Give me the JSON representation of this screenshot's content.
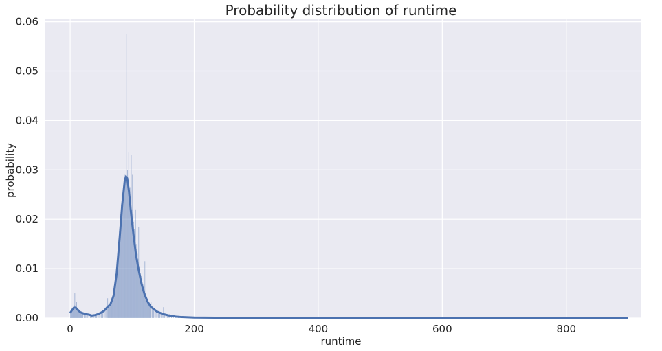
{
  "chart_data": {
    "type": "histogram",
    "title": "Probability distribution of runtime",
    "xlabel": "runtime",
    "ylabel": "probability",
    "xlim": [
      -40,
      920
    ],
    "ylim": [
      0,
      0.0605
    ],
    "xticks": [
      0,
      200,
      400,
      600,
      800
    ],
    "yticks": [
      0.0,
      0.01,
      0.02,
      0.03,
      0.04,
      0.05,
      0.06
    ],
    "ytick_labels": [
      "0.00",
      "0.01",
      "0.02",
      "0.03",
      "0.04",
      "0.05",
      "0.06"
    ],
    "grid": true,
    "background": "#eaeaf2",
    "bar_color": "#4c72b0",
    "line_color": "#4c72b0",
    "histogram_bins": [
      {
        "x": 0,
        "y": 0.001
      },
      {
        "x": 1,
        "y": 0.0013
      },
      {
        "x": 2,
        "y": 0.0014
      },
      {
        "x": 3,
        "y": 0.0018
      },
      {
        "x": 4,
        "y": 0.0016
      },
      {
        "x": 5,
        "y": 0.002
      },
      {
        "x": 6,
        "y": 0.0026
      },
      {
        "x": 7,
        "y": 0.005
      },
      {
        "x": 8,
        "y": 0.0022
      },
      {
        "x": 9,
        "y": 0.002
      },
      {
        "x": 10,
        "y": 0.0032
      },
      {
        "x": 11,
        "y": 0.0018
      },
      {
        "x": 12,
        "y": 0.0016
      },
      {
        "x": 13,
        "y": 0.0014
      },
      {
        "x": 14,
        "y": 0.0012
      },
      {
        "x": 15,
        "y": 0.0012
      },
      {
        "x": 16,
        "y": 0.001
      },
      {
        "x": 17,
        "y": 0.001
      },
      {
        "x": 18,
        "y": 0.001
      },
      {
        "x": 19,
        "y": 0.0009
      },
      {
        "x": 20,
        "y": 0.0009
      },
      {
        "x": 22,
        "y": 0.0008
      },
      {
        "x": 24,
        "y": 0.0008
      },
      {
        "x": 26,
        "y": 0.0007
      },
      {
        "x": 28,
        "y": 0.0007
      },
      {
        "x": 30,
        "y": 0.001
      },
      {
        "x": 32,
        "y": 0.0006
      },
      {
        "x": 34,
        "y": 0.0005
      },
      {
        "x": 36,
        "y": 0.0005
      },
      {
        "x": 38,
        "y": 0.0005
      },
      {
        "x": 40,
        "y": 0.0006
      },
      {
        "x": 42,
        "y": 0.0006
      },
      {
        "x": 44,
        "y": 0.0007
      },
      {
        "x": 46,
        "y": 0.0008
      },
      {
        "x": 48,
        "y": 0.0009
      },
      {
        "x": 50,
        "y": 0.001
      },
      {
        "x": 52,
        "y": 0.0012
      },
      {
        "x": 54,
        "y": 0.0014
      },
      {
        "x": 56,
        "y": 0.0016
      },
      {
        "x": 58,
        "y": 0.002
      },
      {
        "x": 60,
        "y": 0.004
      },
      {
        "x": 61,
        "y": 0.0024
      },
      {
        "x": 62,
        "y": 0.0026
      },
      {
        "x": 63,
        "y": 0.0028
      },
      {
        "x": 64,
        "y": 0.003
      },
      {
        "x": 65,
        "y": 0.0034
      },
      {
        "x": 66,
        "y": 0.0036
      },
      {
        "x": 67,
        "y": 0.004
      },
      {
        "x": 68,
        "y": 0.0045
      },
      {
        "x": 69,
        "y": 0.005
      },
      {
        "x": 70,
        "y": 0.006
      },
      {
        "x": 71,
        "y": 0.0068
      },
      {
        "x": 72,
        "y": 0.008
      },
      {
        "x": 73,
        "y": 0.009
      },
      {
        "x": 74,
        "y": 0.01
      },
      {
        "x": 75,
        "y": 0.011
      },
      {
        "x": 76,
        "y": 0.0125
      },
      {
        "x": 77,
        "y": 0.014
      },
      {
        "x": 78,
        "y": 0.016
      },
      {
        "x": 79,
        "y": 0.0175
      },
      {
        "x": 80,
        "y": 0.02
      },
      {
        "x": 81,
        "y": 0.021
      },
      {
        "x": 82,
        "y": 0.023
      },
      {
        "x": 83,
        "y": 0.025
      },
      {
        "x": 84,
        "y": 0.024
      },
      {
        "x": 85,
        "y": 0.026
      },
      {
        "x": 86,
        "y": 0.0255
      },
      {
        "x": 87,
        "y": 0.027
      },
      {
        "x": 88,
        "y": 0.029
      },
      {
        "x": 89,
        "y": 0.028
      },
      {
        "x": 90,
        "y": 0.0575
      },
      {
        "x": 91,
        "y": 0.0285
      },
      {
        "x": 92,
        "y": 0.03
      },
      {
        "x": 93,
        "y": 0.028
      },
      {
        "x": 94,
        "y": 0.0335
      },
      {
        "x": 95,
        "y": 0.025
      },
      {
        "x": 96,
        "y": 0.0265
      },
      {
        "x": 97,
        "y": 0.024
      },
      {
        "x": 98,
        "y": 0.033
      },
      {
        "x": 99,
        "y": 0.022
      },
      {
        "x": 100,
        "y": 0.029
      },
      {
        "x": 101,
        "y": 0.021
      },
      {
        "x": 102,
        "y": 0.0195
      },
      {
        "x": 103,
        "y": 0.018
      },
      {
        "x": 104,
        "y": 0.0165
      },
      {
        "x": 105,
        "y": 0.022
      },
      {
        "x": 106,
        "y": 0.015
      },
      {
        "x": 107,
        "y": 0.014
      },
      {
        "x": 108,
        "y": 0.013
      },
      {
        "x": 109,
        "y": 0.012
      },
      {
        "x": 110,
        "y": 0.0185
      },
      {
        "x": 111,
        "y": 0.0105
      },
      {
        "x": 112,
        "y": 0.0098
      },
      {
        "x": 113,
        "y": 0.009
      },
      {
        "x": 114,
        "y": 0.0085
      },
      {
        "x": 115,
        "y": 0.008
      },
      {
        "x": 116,
        "y": 0.0072
      },
      {
        "x": 117,
        "y": 0.0068
      },
      {
        "x": 118,
        "y": 0.0062
      },
      {
        "x": 119,
        "y": 0.0058
      },
      {
        "x": 120,
        "y": 0.0115
      },
      {
        "x": 121,
        "y": 0.005
      },
      {
        "x": 122,
        "y": 0.0046
      },
      {
        "x": 123,
        "y": 0.0042
      },
      {
        "x": 124,
        "y": 0.0038
      },
      {
        "x": 125,
        "y": 0.0035
      },
      {
        "x": 126,
        "y": 0.0032
      },
      {
        "x": 127,
        "y": 0.003
      },
      {
        "x": 128,
        "y": 0.0028
      },
      {
        "x": 129,
        "y": 0.0026
      },
      {
        "x": 130,
        "y": 0.0032
      },
      {
        "x": 132,
        "y": 0.0022
      },
      {
        "x": 134,
        "y": 0.002
      },
      {
        "x": 136,
        "y": 0.0018
      },
      {
        "x": 138,
        "y": 0.0016
      },
      {
        "x": 140,
        "y": 0.0015
      },
      {
        "x": 142,
        "y": 0.0013
      },
      {
        "x": 144,
        "y": 0.0012
      },
      {
        "x": 146,
        "y": 0.0011
      },
      {
        "x": 148,
        "y": 0.001
      },
      {
        "x": 150,
        "y": 0.0022
      },
      {
        "x": 152,
        "y": 0.0008
      },
      {
        "x": 154,
        "y": 0.0007
      },
      {
        "x": 156,
        "y": 0.0006
      },
      {
        "x": 158,
        "y": 0.0005
      },
      {
        "x": 160,
        "y": 0.0008
      },
      {
        "x": 163,
        "y": 0.0004
      },
      {
        "x": 166,
        "y": 0.0003
      },
      {
        "x": 170,
        "y": 0.0004
      },
      {
        "x": 174,
        "y": 0.0002
      },
      {
        "x": 178,
        "y": 0.0002
      },
      {
        "x": 182,
        "y": 0.0001
      },
      {
        "x": 188,
        "y": 0.0001
      },
      {
        "x": 195,
        "y": 0.0001
      }
    ],
    "kde": [
      [
        0,
        0.001
      ],
      [
        3,
        0.0016
      ],
      [
        6,
        0.0021
      ],
      [
        9,
        0.0021
      ],
      [
        12,
        0.0017
      ],
      [
        16,
        0.0012
      ],
      [
        20,
        0.001
      ],
      [
        25,
        0.0008
      ],
      [
        30,
        0.0007
      ],
      [
        35,
        0.0005
      ],
      [
        40,
        0.0006
      ],
      [
        45,
        0.0008
      ],
      [
        50,
        0.0011
      ],
      [
        55,
        0.0015
      ],
      [
        60,
        0.0022
      ],
      [
        65,
        0.0028
      ],
      [
        70,
        0.0045
      ],
      [
        75,
        0.009
      ],
      [
        80,
        0.0165
      ],
      [
        84,
        0.023
      ],
      [
        88,
        0.0278
      ],
      [
        90,
        0.0287
      ],
      [
        92,
        0.0283
      ],
      [
        95,
        0.0255
      ],
      [
        98,
        0.0215
      ],
      [
        102,
        0.017
      ],
      [
        106,
        0.013
      ],
      [
        110,
        0.01
      ],
      [
        115,
        0.007
      ],
      [
        120,
        0.0048
      ],
      [
        125,
        0.0033
      ],
      [
        130,
        0.0023
      ],
      [
        140,
        0.0013
      ],
      [
        150,
        0.0008
      ],
      [
        160,
        0.0005
      ],
      [
        170,
        0.0003
      ],
      [
        180,
        0.0002
      ],
      [
        200,
        0.0001
      ],
      [
        250,
        5e-05
      ],
      [
        300,
        4e-05
      ],
      [
        400,
        3e-05
      ],
      [
        500,
        2e-05
      ],
      [
        600,
        2e-05
      ],
      [
        700,
        1e-05
      ],
      [
        800,
        1e-05
      ],
      [
        900,
        1e-05
      ]
    ]
  }
}
